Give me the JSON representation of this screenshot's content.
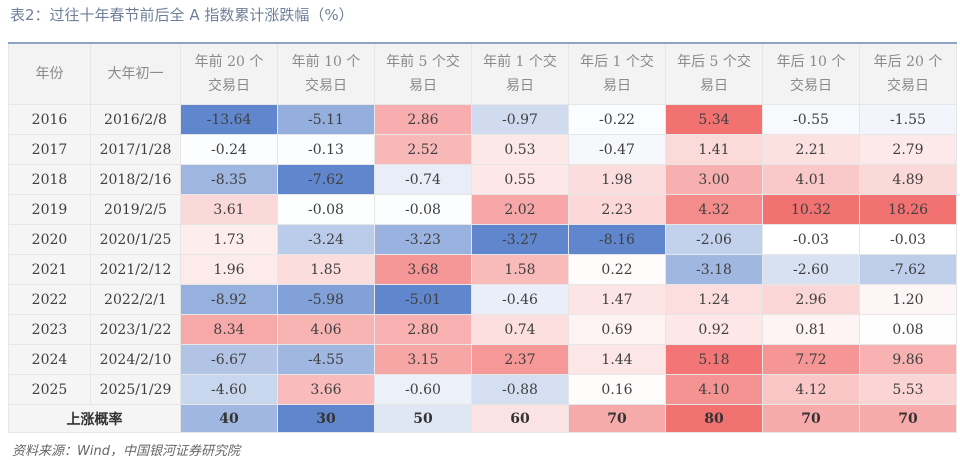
{
  "title": "表2：过往十年春节前后全 A 指数累计涨跌幅（%）",
  "table": {
    "headers": [
      [
        "年份"
      ],
      [
        "大年初一"
      ],
      [
        "年前 20 个",
        "交易日"
      ],
      [
        "年前 10 个",
        "交易日"
      ],
      [
        "年前 5 个交",
        "易日"
      ],
      [
        "年前 1 个交",
        "易日"
      ],
      [
        "年后 1 个交",
        "易日"
      ],
      [
        "年后 5 个交",
        "易日"
      ],
      [
        "年后 10 个",
        "交易日"
      ],
      [
        "年后 20 个",
        "交易日"
      ]
    ],
    "rows": [
      [
        "2016",
        "2016/2/8",
        "-13.64",
        "-5.11",
        "2.86",
        "-0.97",
        "-0.22",
        "5.34",
        "-0.55",
        "-1.55"
      ],
      [
        "2017",
        "2017/1/28",
        "-0.24",
        "-0.13",
        "2.52",
        "0.53",
        "-0.47",
        "1.41",
        "2.21",
        "2.79"
      ],
      [
        "2018",
        "2018/2/16",
        "-8.35",
        "-7.62",
        "-0.74",
        "0.55",
        "1.98",
        "3.00",
        "4.01",
        "4.89"
      ],
      [
        "2019",
        "2019/2/5",
        "3.61",
        "-0.08",
        "-0.08",
        "2.02",
        "2.23",
        "4.32",
        "10.32",
        "18.26"
      ],
      [
        "2020",
        "2020/1/25",
        "1.73",
        "-3.24",
        "-3.23",
        "-3.27",
        "-8.16",
        "-2.06",
        "-0.03",
        "-0.03"
      ],
      [
        "2021",
        "2021/2/12",
        "1.96",
        "1.85",
        "3.68",
        "1.58",
        "0.22",
        "-3.18",
        "-2.60",
        "-7.62"
      ],
      [
        "2022",
        "2022/2/1",
        "-8.92",
        "-5.98",
        "-5.01",
        "-0.46",
        "1.47",
        "1.24",
        "2.96",
        "1.20"
      ],
      [
        "2023",
        "2023/1/22",
        "8.34",
        "4.06",
        "2.80",
        "0.74",
        "0.69",
        "0.92",
        "0.81",
        "0.08"
      ],
      [
        "2024",
        "2024/2/10",
        "-6.67",
        "-4.55",
        "3.15",
        "2.37",
        "1.44",
        "5.18",
        "7.72",
        "9.86"
      ],
      [
        "2025",
        "2025/1/29",
        "-4.60",
        "3.66",
        "-0.60",
        "-0.88",
        "0.16",
        "4.10",
        "4.12",
        "5.53"
      ]
    ],
    "footer": {
      "label": "上涨概率",
      "values": [
        40,
        30,
        50,
        60,
        70,
        80,
        70,
        70
      ]
    }
  },
  "source": "资料来源：Wind，中国银河证券研究院"
}
